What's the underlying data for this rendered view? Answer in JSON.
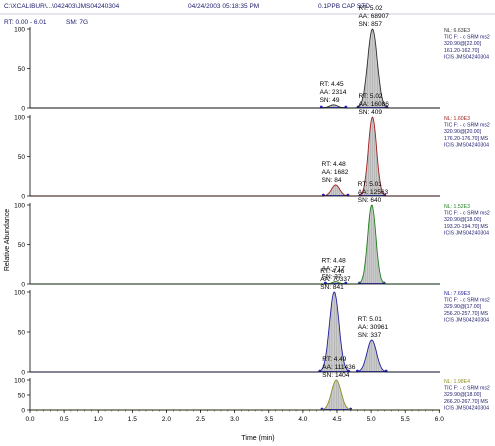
{
  "header": {
    "file_path": "C:\\XCALIBUR\\...\\042403\\JMS04240304",
    "datetime": "04/24/2003 05:18:35 PM",
    "sample_name": "0.1PPB CAP STD",
    "rt_range": "RT: 0.00 - 6.01",
    "smoothing": "SM: 7G"
  },
  "colors": {
    "axis": "#000000",
    "peak_fill": "#c8c8c8",
    "baseline_marker": "#2020d0"
  },
  "chart_data": {
    "type": "line",
    "x_label": "Time (min)",
    "y_label": "Relative Abundance",
    "x_range": [
      0.0,
      6.01
    ],
    "x_ticks": [
      "0.0",
      "0.5",
      "1.0",
      "1.5",
      "2.0",
      "2.5",
      "3.0",
      "3.5",
      "4.0",
      "4.5",
      "5.0",
      "5.5",
      "6.0"
    ],
    "y_ticks": [
      "0",
      "50",
      "100"
    ],
    "y_range": [
      0,
      100
    ],
    "panels": [
      {
        "color": "#303030",
        "info": [
          "NL: 6.63E3",
          "TIC F: - c SRM ms2",
          "320.90@[22.00]",
          "161.20-162.70]",
          "ICIS JMS04240304"
        ],
        "peaks": [
          {
            "rt": 5.02,
            "height": 100,
            "width": 0.07,
            "labels": [
              "RT: 5.02",
              "AA: 68907",
              "SN: 857"
            ]
          },
          {
            "rt": 4.45,
            "height": 4,
            "width": 0.06,
            "labels": [
              "RT: 4.45",
              "AA: 2314",
              "SN: 49"
            ]
          }
        ]
      },
      {
        "color": "#a02020",
        "info": [
          "NL: 1.60E3",
          "TIC F: - c SRM ms2",
          "320.90@[20.00]",
          "176.20-176.70]  MS",
          "ICIS JMS04240304"
        ],
        "peaks": [
          {
            "rt": 5.02,
            "height": 100,
            "width": 0.06,
            "labels": [
              "RT: 5.02",
              "AA: 16086",
              "SN: 409"
            ]
          },
          {
            "rt": 4.48,
            "height": 14,
            "width": 0.06,
            "labels": [
              "RT: 4.48",
              "AA: 1682",
              "SN: 84"
            ]
          }
        ]
      },
      {
        "color": "#208020",
        "info": [
          "NL: 1.52E3",
          "TIC F: - c SRM ms2",
          "320.90@[18.00]",
          "193.20-194.70]  MS",
          "ICIS JMS04240304"
        ],
        "peaks": [
          {
            "rt": 5.01,
            "height": 100,
            "width": 0.06,
            "labels": [
              "RT: 5.01",
              "AA: 12563",
              "SN: 640"
            ]
          },
          {
            "rt": 4.48,
            "height": 3,
            "width": 0.05,
            "labels": [
              "RT: 4.48",
              "AA: 717",
              "SN: 37"
            ]
          }
        ]
      },
      {
        "color": "#2020a0",
        "info": [
          "NL: 7.69E3",
          "TIC F: - c SRM ms2",
          "329.90@[17.00]",
          "256.20-257.70]  MS",
          "ICIS JMS04240304"
        ],
        "peaks": [
          {
            "rt": 4.46,
            "height": 100,
            "width": 0.07,
            "labels": [
              "RT: 4.46",
              "AA: 70337",
              "SN: 841"
            ]
          },
          {
            "rt": 5.01,
            "height": 40,
            "width": 0.07,
            "labels": [
              "RT: 5.01",
              "AA: 30961",
              "SN: 337"
            ]
          }
        ]
      },
      {
        "color": "#909020",
        "info": [
          "NL: 1.98E4",
          "TIC F: - c SRM ms2",
          "329.90@[18.00]",
          "266.20-267.70]  MS",
          "ICIS JMS04240304"
        ],
        "peaks": [
          {
            "rt": 4.49,
            "height": 100,
            "width": 0.07,
            "labels": [
              "RT: 4.49",
              "AA: 111436",
              "SN: 1404"
            ]
          }
        ]
      }
    ]
  }
}
